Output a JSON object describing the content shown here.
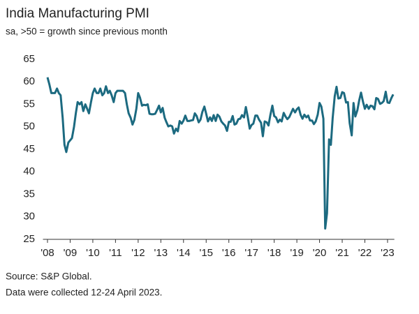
{
  "chart_data": {
    "type": "line",
    "title": "India Manufacturing PMI",
    "subtitle": "sa, >50 = growth since previous month",
    "notes": [
      "Source: S&P Global.",
      "Data were collected 12-24 April 2023."
    ],
    "color": "#1c6a80",
    "x": [
      2008,
      2008.08,
      2008.17,
      2008.25,
      2008.33,
      2008.42,
      2008.5,
      2008.58,
      2008.67,
      2008.75,
      2008.83,
      2008.92,
      2009,
      2009.08,
      2009.17,
      2009.25,
      2009.33,
      2009.42,
      2009.5,
      2009.58,
      2009.67,
      2009.75,
      2009.83,
      2009.92,
      2010,
      2010.08,
      2010.17,
      2010.25,
      2010.33,
      2010.42,
      2010.5,
      2010.58,
      2010.67,
      2010.75,
      2010.83,
      2010.92,
      2011,
      2011.08,
      2011.17,
      2011.25,
      2011.33,
      2011.42,
      2011.5,
      2011.58,
      2011.67,
      2011.75,
      2011.83,
      2011.92,
      2012,
      2012.08,
      2012.17,
      2012.25,
      2012.33,
      2012.42,
      2012.5,
      2012.58,
      2012.67,
      2012.75,
      2012.83,
      2012.92,
      2013,
      2013.08,
      2013.17,
      2013.25,
      2013.33,
      2013.42,
      2013.5,
      2013.58,
      2013.67,
      2013.75,
      2013.83,
      2013.92,
      2014,
      2014.08,
      2014.17,
      2014.25,
      2014.33,
      2014.42,
      2014.5,
      2014.58,
      2014.67,
      2014.75,
      2014.83,
      2014.92,
      2015,
      2015.08,
      2015.17,
      2015.25,
      2015.33,
      2015.42,
      2015.5,
      2015.58,
      2015.67,
      2015.75,
      2015.83,
      2015.92,
      2016,
      2016.08,
      2016.17,
      2016.25,
      2016.33,
      2016.42,
      2016.5,
      2016.58,
      2016.67,
      2016.75,
      2016.83,
      2016.92,
      2017,
      2017.08,
      2017.17,
      2017.25,
      2017.33,
      2017.42,
      2017.5,
      2017.58,
      2017.67,
      2017.75,
      2017.83,
      2017.92,
      2018,
      2018.08,
      2018.17,
      2018.25,
      2018.33,
      2018.42,
      2018.5,
      2018.58,
      2018.67,
      2018.75,
      2018.83,
      2018.92,
      2019,
      2019.08,
      2019.17,
      2019.25,
      2019.33,
      2019.42,
      2019.5,
      2019.58,
      2019.67,
      2019.75,
      2019.83,
      2019.92,
      2020,
      2020.08,
      2020.17,
      2020.25,
      2020.33,
      2020.42,
      2020.5,
      2020.58,
      2020.67,
      2020.75,
      2020.83,
      2020.92,
      2021,
      2021.08,
      2021.17,
      2021.25,
      2021.33,
      2021.42,
      2021.5,
      2021.58,
      2021.67,
      2021.75,
      2021.83,
      2021.92,
      2022,
      2022.08,
      2022.17,
      2022.25,
      2022.33,
      2022.42,
      2022.5,
      2022.58,
      2022.67,
      2022.75,
      2022.83,
      2022.92,
      2023,
      2023.08,
      2023.17,
      2023.25
    ],
    "values": [
      61,
      59.5,
      57.5,
      57.5,
      57.5,
      58.5,
      57.5,
      57,
      52,
      46,
      44.4,
      46.5,
      47,
      47.5,
      50,
      53,
      55.5,
      55,
      55.5,
      53.5,
      55,
      54,
      53,
      55.5,
      57.5,
      58.5,
      57.5,
      57.5,
      58.5,
      57,
      57.5,
      59,
      57.5,
      58,
      57,
      55.5,
      57.5,
      58,
      58,
      58,
      58,
      57.5,
      55,
      53,
      52,
      50.5,
      51.5,
      54,
      57.5,
      56.5,
      54.7,
      54.9,
      54.8,
      55,
      52.9,
      52.8,
      52.8,
      52.9,
      53.7,
      54.7,
      53.2,
      54.2,
      52,
      51,
      50.1,
      50.3,
      50.1,
      48.5,
      49.6,
      49,
      51.3,
      50.7,
      51.4,
      52.5,
      51.3,
      51.3,
      51.4,
      51.5,
      53,
      52.4,
      51,
      51.6,
      53.3,
      54.5,
      52.9,
      51.2,
      52.1,
      51.3,
      52.6,
      51.3,
      52.7,
      52.3,
      51.2,
      50.7,
      50.3,
      49.1,
      51.1,
      51.1,
      52.4,
      50.5,
      50.7,
      51.7,
      51.8,
      52.6,
      52.1,
      54.4,
      52.3,
      49.6,
      50.4,
      50.7,
      52.5,
      52.5,
      51.6,
      50.9,
      47.9,
      51.2,
      51,
      50.3,
      52.6,
      54.7,
      52.4,
      52.1,
      51,
      51.6,
      51.2,
      53.1,
      52.3,
      51.7,
      52.2,
      53.1,
      54,
      53.2,
      53.9,
      54.3,
      52.6,
      51.8,
      52.7,
      52.1,
      52.5,
      51.4,
      51.4,
      50.6,
      51.2,
      52.7,
      55.3,
      54.5,
      51.8,
      27.4,
      30.8,
      47.2,
      46,
      52,
      56.8,
      58.9,
      56.3,
      56.4,
      57.7,
      57.5,
      55.4,
      55.5,
      50.8,
      48.1,
      55.3,
      52.3,
      53.7,
      55.9,
      57.6,
      55.5,
      54,
      54.9,
      54,
      54.7,
      54.6,
      53.9,
      56.4,
      56.2,
      55.1,
      55.3,
      55.7,
      57.8,
      55.4,
      55.3,
      56.4,
      57.2
    ],
    "xlim": [
      2007.8,
      2023.3
    ],
    "xticks": [
      {
        "value": 2008,
        "label": "'08"
      },
      {
        "value": 2009,
        "label": "'09"
      },
      {
        "value": 2010,
        "label": "'10"
      },
      {
        "value": 2011,
        "label": "'11"
      },
      {
        "value": 2012,
        "label": "'12"
      },
      {
        "value": 2013,
        "label": "'13"
      },
      {
        "value": 2014,
        "label": "'14"
      },
      {
        "value": 2015,
        "label": "'15"
      },
      {
        "value": 2016,
        "label": "'16"
      },
      {
        "value": 2017,
        "label": "'17"
      },
      {
        "value": 2018,
        "label": "'18"
      },
      {
        "value": 2019,
        "label": "'19"
      },
      {
        "value": 2020,
        "label": "'20"
      },
      {
        "value": 2021,
        "label": "'21"
      },
      {
        "value": 2022,
        "label": "'22"
      },
      {
        "value": 2023,
        "label": "'23"
      }
    ],
    "ylim": [
      25,
      65
    ],
    "yticks": [
      25,
      30,
      35,
      40,
      45,
      50,
      55,
      60,
      65
    ]
  }
}
